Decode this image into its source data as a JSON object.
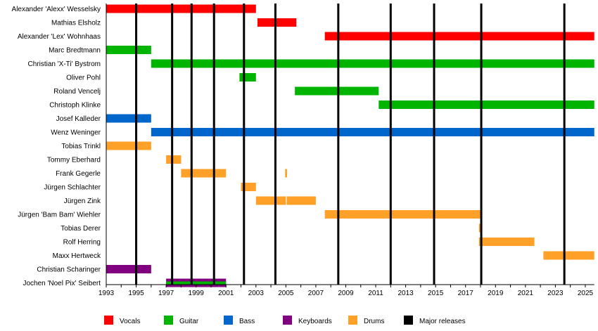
{
  "chart_data": {
    "type": "timeline",
    "xlim": [
      1993,
      2025.6
    ],
    "x_ticks": [
      "1993",
      "1995",
      "1997",
      "1999",
      "2001",
      "2003",
      "2005",
      "2007",
      "2009",
      "2011",
      "2013",
      "2015",
      "2017",
      "2019",
      "2021",
      "2023",
      "2025"
    ],
    "colors": {
      "Vocals": "#ff0000",
      "Guitar": "#00b400",
      "Bass": "#0066cc",
      "Keyboards": "#800080",
      "Drums": "#ffa028",
      "Major releases": "#000000"
    },
    "legend": [
      "Vocals",
      "Guitar",
      "Bass",
      "Keyboards",
      "Drums",
      "Major releases"
    ],
    "legend_position": "bottom",
    "major_releases": [
      1995.0,
      1997.4,
      1998.7,
      2000.2,
      2002.2,
      2004.3,
      2008.5,
      2012.0,
      2014.9,
      2018.05,
      2023.6
    ],
    "members": [
      {
        "name": "Alexander 'Alexx' Wesselsky",
        "periods": [
          {
            "role": "Vocals",
            "from": 1993,
            "to": 2003
          }
        ]
      },
      {
        "name": "Mathias Elsholz",
        "periods": [
          {
            "role": "Vocals",
            "from": 2003.1,
            "to": 2005.7
          }
        ]
      },
      {
        "name": "Alexander 'Lex' Wohnhaas",
        "periods": [
          {
            "role": "Vocals",
            "from": 2007.6,
            "to": 2025.6
          }
        ]
      },
      {
        "name": "Marc Bredtmann",
        "periods": [
          {
            "role": "Guitar",
            "from": 1993,
            "to": 1996
          }
        ]
      },
      {
        "name": "Christian 'X-Ti' Bystrom",
        "periods": [
          {
            "role": "Guitar",
            "from": 1996,
            "to": 2025.6
          }
        ]
      },
      {
        "name": "Oliver Pohl",
        "periods": [
          {
            "role": "Guitar",
            "from": 2001.9,
            "to": 2003
          }
        ]
      },
      {
        "name": "Roland Vencelj",
        "periods": [
          {
            "role": "Guitar",
            "from": 2005.6,
            "to": 2011.2
          }
        ]
      },
      {
        "name": "Christoph Klinke",
        "periods": [
          {
            "role": "Guitar",
            "from": 2011.2,
            "to": 2025.6
          }
        ]
      },
      {
        "name": "Josef Kalleder",
        "periods": [
          {
            "role": "Bass",
            "from": 1993,
            "to": 1996
          }
        ]
      },
      {
        "name": "Wenz Weninger",
        "periods": [
          {
            "role": "Bass",
            "from": 1996,
            "to": 2025.6
          }
        ]
      },
      {
        "name": "Tobias Trinkl",
        "periods": [
          {
            "role": "Drums",
            "from": 1993,
            "to": 1996
          }
        ]
      },
      {
        "name": "Tommy Eberhard",
        "periods": [
          {
            "role": "Drums",
            "from": 1997,
            "to": 1998
          }
        ]
      },
      {
        "name": "Frank Gegerle",
        "periods": [
          {
            "role": "Drums",
            "from": 1998,
            "to": 2001
          },
          {
            "role": "Drums",
            "from": 2004.95,
            "to": 2005.08
          }
        ]
      },
      {
        "name": "Jürgen Schlachter",
        "periods": [
          {
            "role": "Drums",
            "from": 2002,
            "to": 2003
          }
        ]
      },
      {
        "name": "Jürgen Zink",
        "periods": [
          {
            "role": "Drums",
            "from": 2003,
            "to": 2005
          },
          {
            "role": "Drums",
            "from": 2005.05,
            "to": 2007
          }
        ]
      },
      {
        "name": "Jürgen 'Bam Bam' Wiehler",
        "periods": [
          {
            "role": "Drums",
            "from": 2007.6,
            "to": 2018.1
          }
        ]
      },
      {
        "name": "Tobias Derer",
        "periods": [
          {
            "role": "Drums",
            "from": 2017.9,
            "to": 2018.1
          }
        ]
      },
      {
        "name": "Rolf Herring",
        "periods": [
          {
            "role": "Drums",
            "from": 2017.9,
            "to": 2021.6
          }
        ]
      },
      {
        "name": "Maxx Hertweck",
        "periods": [
          {
            "role": "Drums",
            "from": 2022.2,
            "to": 2025.6
          }
        ]
      },
      {
        "name": "Christian Scharinger",
        "periods": [
          {
            "role": "Keyboards",
            "from": 1993,
            "to": 1996
          }
        ]
      },
      {
        "name": "Jochen 'Noel Pix' Seibert",
        "periods": [
          {
            "role": "Keyboards",
            "from": 1997,
            "to": 2001
          },
          {
            "role": "Guitar",
            "from": 1997,
            "to": 2001,
            "stripe": true
          }
        ]
      }
    ]
  }
}
